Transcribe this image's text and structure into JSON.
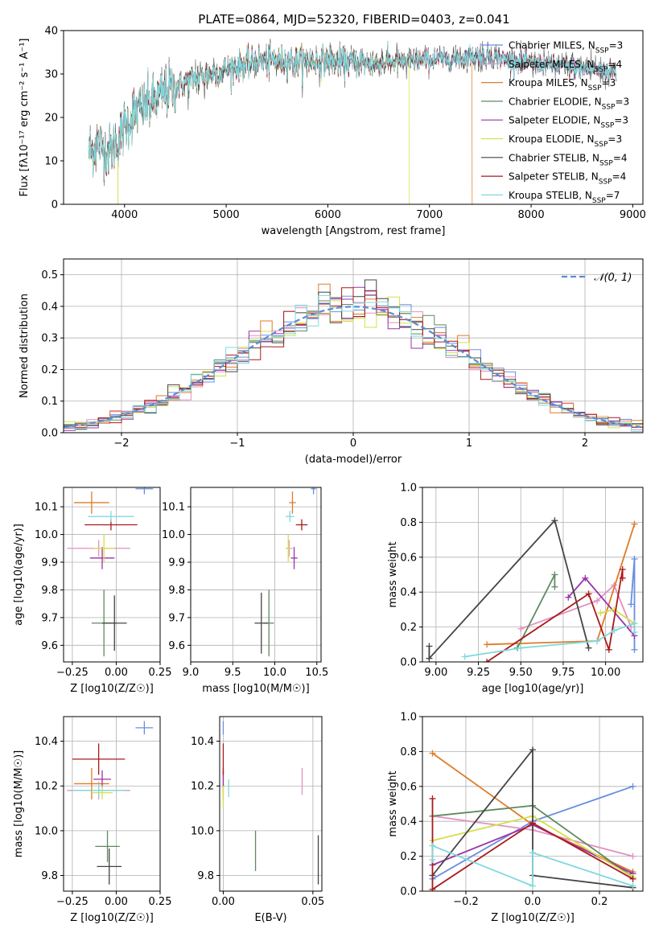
{
  "figure_title": "PLATE=0864, MJD=52320, FIBERID=0403, z=0.041",
  "colors": {
    "Chabrier MILES": "#6a8fe0",
    "Salpeter MILES": "#e58fc0",
    "Kroupa MILES": "#e07b28",
    "Chabrier ELODIE": "#5f8a5f",
    "Salpeter ELODIE": "#9933aa",
    "Kroupa ELODIE": "#d4e04a",
    "Chabrier STELIB": "#444444",
    "Salpeter STELIB": "#aa1a1a",
    "Kroupa STELIB": "#7fd8dc",
    "normal_curve": "#5b8bd6",
    "grid": "#b0b0b0"
  },
  "chart_data": [
    {
      "id": "spectrum",
      "type": "line",
      "xlabel": "wavelength [Angstrom, rest frame]",
      "ylabel": "Flux [fλ10⁻¹⁷ erg cm⁻² s⁻¹ A⁻¹]",
      "xlim": [
        3400,
        9100
      ],
      "ylim": [
        0,
        40
      ],
      "xticks": [
        4000,
        5000,
        6000,
        7000,
        8000,
        9000
      ],
      "yticks": [
        0,
        10,
        20,
        30,
        40
      ],
      "grid": false,
      "legend": "top-right",
      "series": [
        {
          "name": "Chabrier MILES, N_SSP=3"
        },
        {
          "name": "Salpeter MILES, N_SSP=4"
        },
        {
          "name": "Kroupa MILES, N_SSP=3"
        },
        {
          "name": "Chabrier ELODIE, N_SSP=3"
        },
        {
          "name": "Salpeter ELODIE, N_SSP=3"
        },
        {
          "name": "Kroupa ELODIE, N_SSP=3"
        },
        {
          "name": "Chabrier STELIB, N_SSP=4"
        },
        {
          "name": "Salpeter STELIB, N_SSP=4"
        },
        {
          "name": "Kroupa STELIB, N_SSP=7"
        }
      ],
      "continuum": {
        "x": [
          3650,
          3750,
          3850,
          3950,
          4000,
          4100,
          4300,
          4500,
          4700,
          5000,
          5300,
          5600,
          6000,
          6400,
          6800,
          7200,
          7400,
          7600,
          8000,
          8400,
          8840
        ],
        "y": [
          12,
          14,
          12,
          15,
          18,
          21,
          24,
          27,
          29,
          31,
          33,
          33,
          33,
          32.5,
          33,
          33.5,
          34,
          34,
          32.5,
          31.5,
          30.5
        ]
      },
      "spectrum_ends": {
        "Kroupa ELODIE": 6800,
        "Kroupa MILES": 7420
      }
    },
    {
      "id": "residuals",
      "type": "line",
      "xlabel": "(data-model)/error",
      "ylabel": "Normed distribution",
      "xlim": [
        -2.5,
        2.5
      ],
      "ylim": [
        0,
        0.55
      ],
      "xticks": [
        -2,
        -1,
        0,
        1,
        2
      ],
      "yticks": [
        0.0,
        0.1,
        0.2,
        0.3,
        0.4,
        0.5
      ],
      "grid": true,
      "legend": "top-right",
      "legend_label": "𝒩(0, 1)",
      "normal": {
        "mean": 0,
        "sigma": 1
      }
    },
    {
      "id": "age_vs_Z",
      "type": "scatter",
      "xlabel": "Z [log10(Z/Z☉)]",
      "ylabel": "age  [log10(age/yr)]",
      "xlim": [
        -0.3,
        0.25
      ],
      "ylim": [
        9.54,
        10.17
      ],
      "xticks": [
        -0.25,
        0.0,
        0.25
      ],
      "yticks": [
        9.6,
        9.7,
        9.8,
        9.9,
        10.0,
        10.1
      ],
      "grid": true,
      "points": [
        {
          "model": "Chabrier MILES",
          "x": 0.16,
          "y": 10.165,
          "xerr": 0.05,
          "yerr": 0.02
        },
        {
          "model": "Salpeter MILES",
          "x": -0.1,
          "y": 9.95,
          "xerr": 0.18,
          "yerr": 0.03
        },
        {
          "model": "Kroupa MILES",
          "x": -0.14,
          "y": 10.115,
          "xerr": 0.1,
          "yerr": 0.04
        },
        {
          "model": "Chabrier ELODIE",
          "x": -0.07,
          "y": 9.68,
          "xerr": 0.07,
          "yerr": 0.12
        },
        {
          "model": "Salpeter ELODIE",
          "x": -0.08,
          "y": 9.915,
          "xerr": 0.07,
          "yerr": 0.04
        },
        {
          "model": "Kroupa ELODIE",
          "x": -0.07,
          "y": 9.95,
          "xerr": 0.06,
          "yerr": 0.05
        },
        {
          "model": "Chabrier STELIB",
          "x": -0.01,
          "y": 9.68,
          "xerr": 0.07,
          "yerr": 0.1
        },
        {
          "model": "Salpeter STELIB",
          "x": -0.03,
          "y": 10.035,
          "xerr": 0.15,
          "yerr": 0.02
        },
        {
          "model": "Kroupa STELIB",
          "x": -0.03,
          "y": 10.065,
          "xerr": 0.13,
          "yerr": 0.02
        }
      ]
    },
    {
      "id": "age_vs_mass",
      "type": "scatter",
      "xlabel": "mass [log10(M/M☉)]",
      "ylabel": "",
      "xlim": [
        9.0,
        10.55
      ],
      "ylim": [
        9.54,
        10.17
      ],
      "xticks": [
        9.0,
        9.5,
        10.0,
        10.5
      ],
      "yticks": [
        9.6,
        9.7,
        9.8,
        9.9,
        10.0,
        10.1
      ],
      "grid": true,
      "points": [
        {
          "model": "Chabrier MILES",
          "x": 10.46,
          "y": 10.165,
          "xerr": 0.03,
          "yerr": 0.02
        },
        {
          "model": "Salpeter MILES",
          "x": 10.17,
          "y": 9.95,
          "xerr": 0.04,
          "yerr": 0.03
        },
        {
          "model": "Kroupa MILES",
          "x": 10.21,
          "y": 10.115,
          "xerr": 0.04,
          "yerr": 0.04
        },
        {
          "model": "Chabrier ELODIE",
          "x": 9.93,
          "y": 9.68,
          "xerr": 0.06,
          "yerr": 0.12
        },
        {
          "model": "Salpeter ELODIE",
          "x": 10.23,
          "y": 9.915,
          "xerr": 0.04,
          "yerr": 0.04
        },
        {
          "model": "Kroupa ELODIE",
          "x": 10.16,
          "y": 9.95,
          "xerr": 0.03,
          "yerr": 0.05
        },
        {
          "model": "Chabrier STELIB",
          "x": 9.84,
          "y": 9.68,
          "xerr": 0.08,
          "yerr": 0.11
        },
        {
          "model": "Salpeter STELIB",
          "x": 10.32,
          "y": 10.035,
          "xerr": 0.07,
          "yerr": 0.02
        },
        {
          "model": "Kroupa STELIB",
          "x": 10.18,
          "y": 10.065,
          "xerr": 0.05,
          "yerr": 0.02
        }
      ]
    },
    {
      "id": "weight_vs_age",
      "type": "line",
      "xlabel": "age  [log10(age/yr)]",
      "ylabel": "mass weight",
      "xlim": [
        8.92,
        10.22
      ],
      "ylim": [
        0,
        1.0
      ],
      "xticks": [
        9.0,
        9.25,
        9.5,
        9.75,
        10.0
      ],
      "yticks": [
        0.0,
        0.2,
        0.4,
        0.6,
        0.8,
        1.0
      ],
      "grid": true,
      "series": [
        {
          "model": "Chabrier MILES",
          "x": [
            10.15,
            10.17,
            10.17
          ],
          "y": [
            0.33,
            0.59,
            0.07
          ]
        },
        {
          "model": "Salpeter MILES",
          "x": [
            9.5,
            9.95,
            10.05,
            10.15
          ],
          "y": [
            0.19,
            0.35,
            0.44,
            0.2
          ]
        },
        {
          "model": "Kroupa MILES",
          "x": [
            9.3,
            9.95,
            10.17
          ],
          "y": [
            0.1,
            0.12,
            0.79
          ]
        },
        {
          "model": "Chabrier ELODIE",
          "x": [
            9.48,
            9.7,
            9.7
          ],
          "y": [
            0.08,
            0.5,
            0.43
          ]
        },
        {
          "model": "Salpeter ELODIE",
          "x": [
            9.78,
            9.88,
            10.17
          ],
          "y": [
            0.37,
            0.48,
            0.15
          ]
        },
        {
          "model": "Kroupa ELODIE",
          "x": [
            9.97,
            10.05,
            10.17
          ],
          "y": [
            0.28,
            0.3,
            0.22
          ]
        },
        {
          "model": "Chabrier STELIB",
          "x": [
            8.96,
            8.96,
            9.7,
            9.9
          ],
          "y": [
            0.09,
            0.02,
            0.81,
            0.08
          ]
        },
        {
          "model": "Salpeter STELIB",
          "x": [
            9.3,
            9.9,
            10.02,
            10.1,
            10.1
          ],
          "y": [
            0.0,
            0.39,
            0.07,
            0.53,
            0.48
          ]
        },
        {
          "model": "Kroupa STELIB",
          "x": [
            9.17,
            9.5,
            9.95,
            10.05,
            10.17,
            10.17
          ],
          "y": [
            0.03,
            0.08,
            0.12,
            0.18,
            0.22,
            0.17
          ]
        }
      ]
    },
    {
      "id": "mass_vs_Z",
      "type": "scatter",
      "xlabel": "Z [log10(Z/Z☉)]",
      "ylabel": "mass [log10(M/M☉)]",
      "xlim": [
        -0.3,
        0.25
      ],
      "ylim": [
        9.73,
        10.51
      ],
      "xticks": [
        -0.25,
        0.0,
        0.25
      ],
      "yticks": [
        9.8,
        10.0,
        10.2,
        10.4
      ],
      "grid": true,
      "points": [
        {
          "model": "Chabrier MILES",
          "x": 0.16,
          "y": 10.46,
          "xerr": 0.05,
          "yerr": 0.03
        },
        {
          "model": "Salpeter MILES",
          "x": -0.1,
          "y": 10.18,
          "xerr": 0.18,
          "yerr": 0.04
        },
        {
          "model": "Kroupa MILES",
          "x": -0.14,
          "y": 10.21,
          "xerr": 0.1,
          "yerr": 0.07
        },
        {
          "model": "Chabrier ELODIE",
          "x": -0.05,
          "y": 9.93,
          "xerr": 0.07,
          "yerr": 0.07
        },
        {
          "model": "Salpeter ELODIE",
          "x": -0.08,
          "y": 10.23,
          "xerr": 0.05,
          "yerr": 0.04
        },
        {
          "model": "Kroupa ELODIE",
          "x": -0.08,
          "y": 10.17,
          "xerr": 0.06,
          "yerr": 0.03
        },
        {
          "model": "Chabrier STELIB",
          "x": -0.04,
          "y": 9.84,
          "xerr": 0.07,
          "yerr": 0.08
        },
        {
          "model": "Salpeter STELIB",
          "x": -0.1,
          "y": 10.32,
          "xerr": 0.15,
          "yerr": 0.07
        },
        {
          "model": "Kroupa STELIB",
          "x": -0.1,
          "y": 10.18,
          "xerr": 0.15,
          "yerr": 0.03
        }
      ]
    },
    {
      "id": "mass_vs_ebv",
      "type": "scatter",
      "xlabel": "E(B-V)",
      "ylabel": "",
      "xlim": [
        -0.002,
        0.055
      ],
      "ylim": [
        9.73,
        10.51
      ],
      "xticks": [
        0.0,
        0.05
      ],
      "yticks": [
        9.8,
        10.0,
        10.2,
        10.4
      ],
      "grid": true,
      "points": [
        {
          "model": "Chabrier MILES",
          "x": 0.0,
          "y": 10.46,
          "xerr": 0,
          "yerr": 0.03
        },
        {
          "model": "Salpeter MILES",
          "x": 0.044,
          "y": 10.22,
          "xerr": 0,
          "yerr": 0.06
        },
        {
          "model": "Kroupa MILES",
          "x": 0.0,
          "y": 10.21,
          "xerr": 0,
          "yerr": 0.07
        },
        {
          "model": "Chabrier ELODIE",
          "x": 0.018,
          "y": 9.91,
          "xerr": 0,
          "yerr": 0.09
        },
        {
          "model": "Salpeter ELODIE",
          "x": 0.0,
          "y": 10.23,
          "xerr": 0,
          "yerr": 0.04
        },
        {
          "model": "Kroupa ELODIE",
          "x": 0.0,
          "y": 10.15,
          "xerr": 0,
          "yerr": 0.05
        },
        {
          "model": "Chabrier STELIB",
          "x": 0.053,
          "y": 9.87,
          "xerr": 0,
          "yerr": 0.11
        },
        {
          "model": "Salpeter STELIB",
          "x": 0.0,
          "y": 10.32,
          "xerr": 0,
          "yerr": 0.07
        },
        {
          "model": "Kroupa STELIB",
          "x": 0.003,
          "y": 10.19,
          "xerr": 0,
          "yerr": 0.04
        }
      ]
    },
    {
      "id": "weight_vs_Z",
      "type": "line",
      "xlabel": "Z [log10(Z/Z☉)]",
      "ylabel": "mass weight",
      "xlim": [
        -0.33,
        0.33
      ],
      "ylim": [
        0,
        1.0
      ],
      "xticks": [
        -0.2,
        0.0,
        0.2
      ],
      "yticks": [
        0.0,
        0.2,
        0.4,
        0.6,
        0.8,
        1.0
      ],
      "grid": true,
      "series": [
        {
          "model": "Chabrier MILES",
          "x": [
            -0.3,
            0.0,
            0.3
          ],
          "y": [
            0.07,
            0.4,
            0.6
          ]
        },
        {
          "model": "Salpeter MILES",
          "x": [
            -0.3,
            0.0,
            0.3
          ],
          "y": [
            0.43,
            0.35,
            0.2
          ]
        },
        {
          "model": "Kroupa MILES",
          "x": [
            -0.3,
            0.0,
            0.3
          ],
          "y": [
            0.79,
            0.38,
            0.11
          ]
        },
        {
          "model": "Chabrier ELODIE",
          "x": [
            -0.3,
            0.0,
            0.3
          ],
          "y": [
            0.43,
            0.49,
            0.08
          ]
        },
        {
          "model": "Salpeter ELODIE",
          "x": [
            -0.3,
            0.0,
            0.3
          ],
          "y": [
            0.15,
            0.38,
            0.1
          ]
        },
        {
          "model": "Kroupa ELODIE",
          "x": [
            -0.3,
            0.0,
            0.3
          ],
          "y": [
            0.29,
            0.43,
            0.08
          ]
        },
        {
          "model": "Chabrier STELIB",
          "x": [
            -0.3,
            0.0,
            0.0,
            0.3
          ],
          "y": [
            0.09,
            0.81,
            0.09,
            0.02
          ]
        },
        {
          "model": "Salpeter STELIB",
          "x": [
            -0.3,
            -0.3,
            0.0,
            0.3
          ],
          "y": [
            0.53,
            0.01,
            0.39,
            0.07
          ]
        },
        {
          "model": "Kroupa STELIB",
          "x": [
            -0.3,
            -0.3,
            0.0,
            0.0,
            0.3
          ],
          "y": [
            0.18,
            0.26,
            0.03,
            0.22,
            0.03
          ]
        }
      ]
    }
  ]
}
